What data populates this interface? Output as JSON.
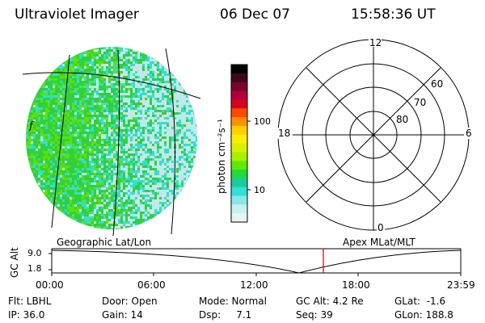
{
  "header": {
    "title": "Ultraviolet Imager",
    "date": "06 Dec 07",
    "time": "15:58:36 UT"
  },
  "colorbar": {
    "unit_label": "photon cm⁻²s⁻¹",
    "ticks": [
      "100",
      "10"
    ],
    "colors": [
      "#000000",
      "#3a0a1a",
      "#7a0030",
      "#b00038",
      "#d80020",
      "#ff4800",
      "#ff9000",
      "#ffd000",
      "#f8f000",
      "#d8f000",
      "#a8f000",
      "#60e800",
      "#20d840",
      "#20c8a0",
      "#30e0d8",
      "#88e8e8",
      "#c8f0f0",
      "#e8f4f4"
    ]
  },
  "polar_plot": {
    "hour_labels": {
      "top": "12",
      "left": "18",
      "right": "6",
      "bottom": "0"
    },
    "lat_labels": [
      "60",
      "70",
      "80"
    ]
  },
  "altitude_plot": {
    "left_title": "Geographic Lat/Lon",
    "right_title": "Apex MLat/MLT",
    "ylabel": "GC Alt",
    "y_ticks": [
      "9.0",
      "1.8"
    ],
    "x_ticks": [
      "00:00",
      "06:00",
      "12:00",
      "18:00",
      "23:59"
    ],
    "marker_color": "#cc0000"
  },
  "footer": {
    "col1": [
      "Flt: LBHL",
      "IP: 36.0"
    ],
    "col2": [
      "Door: Open",
      "Gain: 14"
    ],
    "col3": [
      "Mode: Normal",
      "Dsp:     7.1"
    ],
    "col4": [
      "GC Alt: 4.2 Re",
      "Seq: 39"
    ],
    "col5": [
      "GLat:  -1.6",
      "GLon: 188.8"
    ]
  },
  "image_panel": {
    "annotation": "f",
    "palette": {
      "green": "#30d040",
      "lightgreen": "#60e000",
      "cyan": "#30e0d0",
      "paleCyan": "#b8ecec",
      "grey": "#d8e0e0"
    }
  }
}
